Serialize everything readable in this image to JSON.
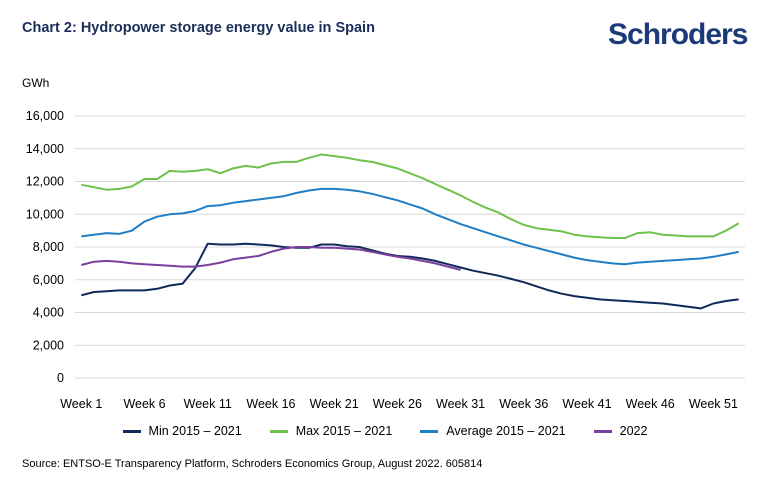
{
  "header": {
    "title": "Chart 2: Hydropower storage energy value in Spain",
    "logo": "Schroders"
  },
  "source": "Source: ENTSO-E Transparency Platform, Schroders Economics Group, August 2022. 605814",
  "chart_data": {
    "type": "line",
    "title": "Chart 2: Hydropower storage energy value in Spain",
    "ylabel": "GWh",
    "xlabel": "",
    "ylim": [
      0,
      16000
    ],
    "yticks": [
      0,
      2000,
      4000,
      6000,
      8000,
      10000,
      12000,
      14000,
      16000
    ],
    "ytick_labels": [
      "0",
      "2,000",
      "4,000",
      "6,000",
      "8,000",
      "10,000",
      "12,000",
      "14,000",
      "16,000"
    ],
    "xticks": [
      1,
      6,
      11,
      16,
      21,
      26,
      31,
      36,
      41,
      46,
      51
    ],
    "xtick_labels": [
      "Week 1",
      "Week 6",
      "Week 11",
      "Week 16",
      "Week 21",
      "Week 26",
      "Week 31",
      "Week 36",
      "Week 41",
      "Week 46",
      "Week 51"
    ],
    "grid": "horizontal",
    "legend_position": "bottom",
    "series": [
      {
        "name": "Min 2015 – 2021",
        "color": "#0f2a5a",
        "weeks": [
          1,
          2,
          3,
          4,
          5,
          6,
          7,
          8,
          9,
          10,
          11,
          12,
          13,
          14,
          15,
          16,
          17,
          18,
          19,
          20,
          21,
          22,
          23,
          24,
          25,
          26,
          27,
          28,
          29,
          30,
          31,
          32,
          33,
          34,
          35,
          36,
          37,
          38,
          39,
          40,
          41,
          42,
          43,
          44,
          45,
          46,
          47,
          48,
          49,
          50,
          51,
          52,
          53
        ],
        "values": [
          5050,
          5250,
          5300,
          5350,
          5350,
          5350,
          5450,
          5650,
          5750,
          6700,
          8200,
          8150,
          8150,
          8200,
          8150,
          8100,
          8000,
          7950,
          7950,
          8150,
          8150,
          8050,
          8000,
          7800,
          7600,
          7450,
          7400,
          7300,
          7150,
          6950,
          6750,
          6550,
          6400,
          6250,
          6050,
          5850,
          5600,
          5350,
          5150,
          5000,
          4900,
          4800,
          4750,
          4700,
          4650,
          4600,
          4550,
          4450,
          4350,
          4250,
          4550,
          4700,
          4800
        ]
      },
      {
        "name": "Max 2015 – 2021",
        "color": "#6cc24a",
        "weeks": [
          1,
          2,
          3,
          4,
          5,
          6,
          7,
          8,
          9,
          10,
          11,
          12,
          13,
          14,
          15,
          16,
          17,
          18,
          19,
          20,
          21,
          22,
          23,
          24,
          25,
          26,
          27,
          28,
          29,
          30,
          31,
          32,
          33,
          34,
          35,
          36,
          37,
          38,
          39,
          40,
          41,
          42,
          43,
          44,
          45,
          46,
          47,
          48,
          49,
          50,
          51,
          52,
          53
        ],
        "values": [
          11800,
          11650,
          11500,
          11550,
          11700,
          12150,
          12150,
          12650,
          12600,
          12650,
          12750,
          12500,
          12800,
          12950,
          12850,
          13100,
          13200,
          13200,
          13450,
          13650,
          13550,
          13450,
          13300,
          13200,
          13000,
          12800,
          12500,
          12200,
          11850,
          11500,
          11150,
          10750,
          10400,
          10100,
          9700,
          9350,
          9150,
          9050,
          8950,
          8750,
          8650,
          8600,
          8550,
          8550,
          8850,
          8900,
          8750,
          8700,
          8650,
          8650,
          8650,
          9000,
          9450
        ]
      },
      {
        "name": "Average 2015 – 2021",
        "color": "#1f7ec4",
        "weeks": [
          1,
          2,
          3,
          4,
          5,
          6,
          7,
          8,
          9,
          10,
          11,
          12,
          13,
          14,
          15,
          16,
          17,
          18,
          19,
          20,
          21,
          22,
          23,
          24,
          25,
          26,
          27,
          28,
          29,
          30,
          31,
          32,
          33,
          34,
          35,
          36,
          37,
          38,
          39,
          40,
          41,
          42,
          43,
          44,
          45,
          46,
          47,
          48,
          49,
          50,
          51,
          52,
          53
        ],
        "values": [
          8650,
          8750,
          8850,
          8800,
          9000,
          9550,
          9850,
          10000,
          10050,
          10200,
          10500,
          10550,
          10700,
          10800,
          10900,
          11000,
          11100,
          11300,
          11450,
          11550,
          11550,
          11500,
          11400,
          11250,
          11050,
          10850,
          10600,
          10350,
          10000,
          9700,
          9400,
          9150,
          8900,
          8650,
          8400,
          8150,
          7950,
          7750,
          7550,
          7350,
          7200,
          7100,
          7000,
          6950,
          7050,
          7100,
          7150,
          7200,
          7250,
          7300,
          7400,
          7550,
          7700
        ]
      },
      {
        "name": "2022",
        "color": "#7b3f9e",
        "weeks": [
          1,
          2,
          3,
          4,
          5,
          6,
          7,
          8,
          9,
          10,
          11,
          12,
          13,
          14,
          15,
          16,
          17,
          18,
          19,
          20,
          21,
          22,
          23,
          24,
          25,
          26,
          27,
          28,
          29,
          30,
          31
        ],
        "values": [
          6900,
          7100,
          7150,
          7100,
          7000,
          6950,
          6900,
          6850,
          6800,
          6800,
          6900,
          7050,
          7250,
          7350,
          7450,
          7700,
          7900,
          8000,
          8000,
          7950,
          7950,
          7900,
          7850,
          7700,
          7550,
          7400,
          7300,
          7150,
          7000,
          6800,
          6600
        ]
      }
    ]
  }
}
